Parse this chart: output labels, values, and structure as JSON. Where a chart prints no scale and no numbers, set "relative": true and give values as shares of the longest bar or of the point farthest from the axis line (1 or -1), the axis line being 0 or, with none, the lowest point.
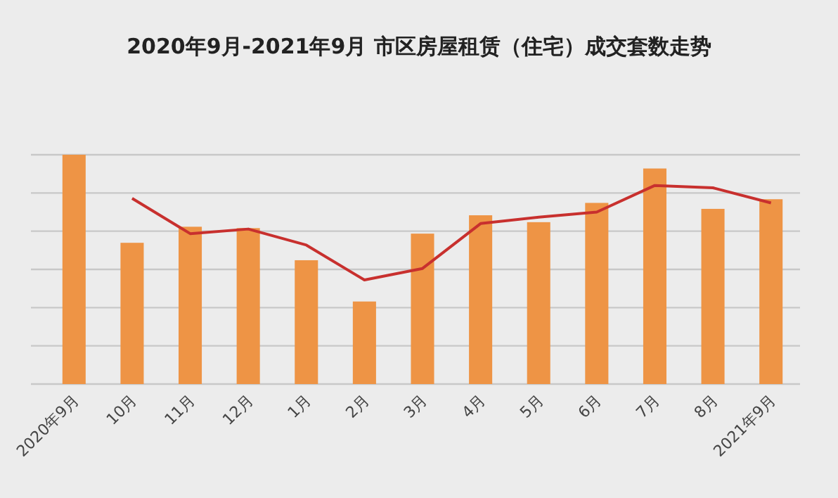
{
  "chart_data": {
    "type": "bar",
    "title": "2020年9月-2021年9月 市区房屋租赁（住宅）成交套数走势",
    "categories": [
      "2020年9月",
      "10月",
      "11月",
      "12月",
      "1月",
      "2月",
      "3月",
      "4月",
      "5月",
      "6月",
      "7月",
      "8月",
      "2021年9月"
    ],
    "relative": true,
    "grid": "y",
    "series": [
      {
        "color": "#ee9445",
        "values": [
          1,
          0.616,
          0.686,
          0.68,
          0.54,
          0.36,
          0.656,
          0.736,
          0.706,
          0.79,
          0.94,
          0.764,
          0.806
        ]
      },
      {
        "type": "line",
        "color": "#c8302e",
        "marker": "none",
        "line_style": "solid",
        "values": [
          null,
          0.81,
          0.656,
          0.676,
          0.606,
          0.454,
          0.504,
          0.7,
          0.728,
          0.75,
          0.866,
          0.856,
          0.79
        ]
      }
    ]
  }
}
